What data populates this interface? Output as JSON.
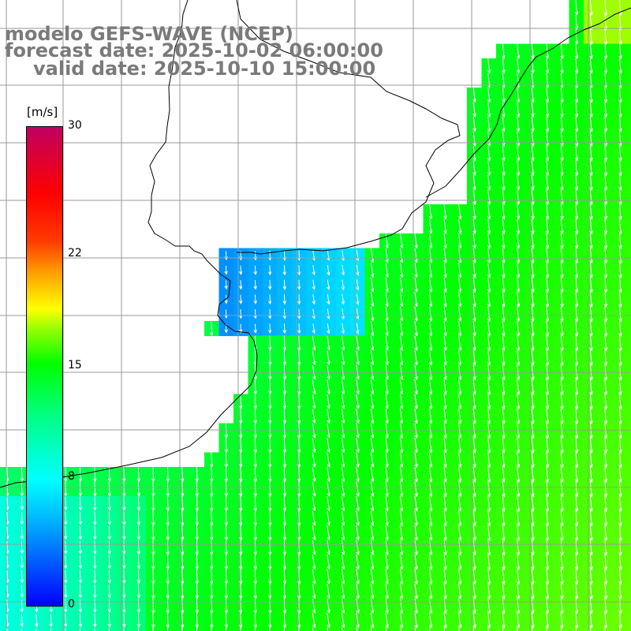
{
  "title": {
    "line1": "modelo GEFS-WAVE (NCEP)",
    "line2": "forecast date: 2025-10-02 06:00:00",
    "line3": "valid date: 2025-10-10 15:00:00"
  },
  "legend": {
    "unit": "[m/s]",
    "min": 0,
    "max": 30,
    "ticks": [
      "30",
      "22",
      "15",
      "8",
      "0"
    ],
    "tick_values": [
      30,
      22,
      15,
      8,
      0
    ]
  },
  "map": {
    "land_color": "#ffffff",
    "grid_color": "#9a9a9a",
    "coast_color": "#000000",
    "arrow_color": "#ffffff",
    "field_note": "wind speed, mostly 8-13 m/s; calmest (~4-6 m/s) in estuary"
  }
}
